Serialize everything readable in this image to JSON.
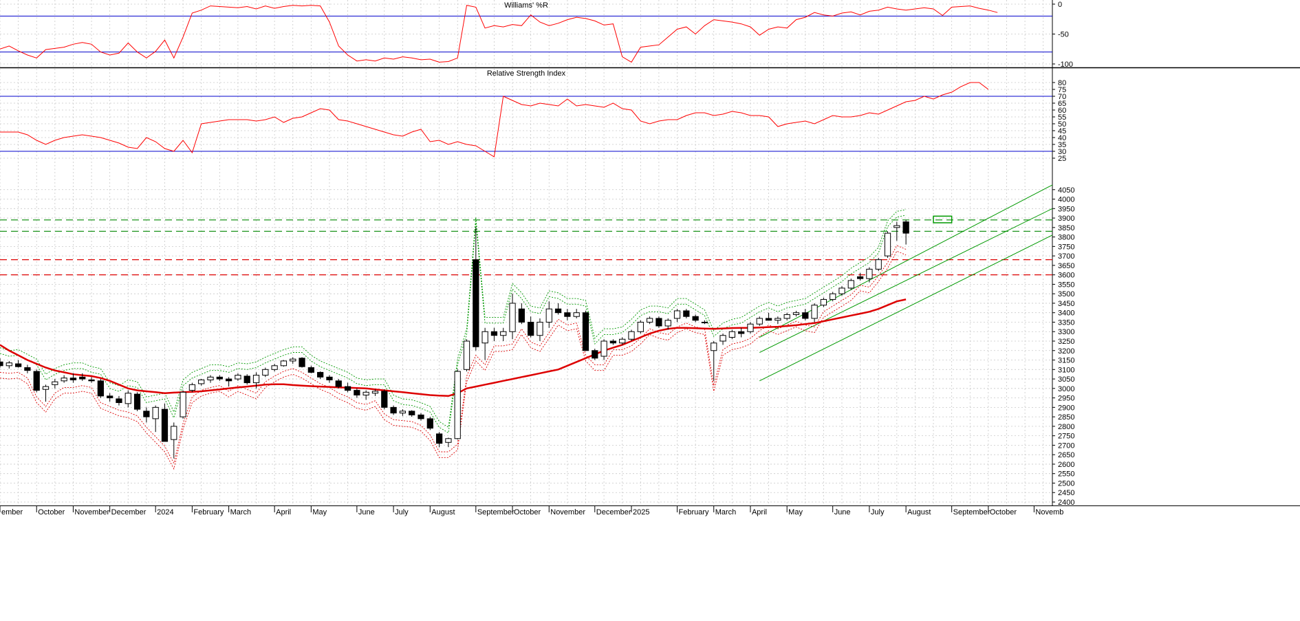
{
  "chart_data": [
    {
      "type": "line",
      "title": "Williams' %R",
      "ylim": [
        -100,
        0
      ],
      "yticks": [
        0,
        -50,
        -100
      ],
      "levels": [
        -20,
        -80
      ],
      "level_color": "#0000cc",
      "series": [
        {
          "color": "#ff0000",
          "values": [
            -75,
            -70,
            -78,
            -85,
            -90,
            -76,
            -74,
            -72,
            -67,
            -64,
            -67,
            -80,
            -85,
            -82,
            -65,
            -80,
            -90,
            -79,
            -60,
            -90,
            -55,
            -15,
            -10,
            -3,
            -4,
            -5,
            -6,
            -4,
            -8,
            -3,
            -7,
            -4,
            -2,
            -3,
            -2,
            -3,
            -30,
            -70,
            -85,
            -95,
            -93,
            -95,
            -90,
            -92,
            -88,
            -90,
            -93,
            -92,
            -97,
            -96,
            -90,
            -2,
            -5,
            -40,
            -36,
            -38,
            -34,
            -36,
            -18,
            -30,
            -36,
            -32,
            -26,
            -22,
            -24,
            -28,
            -35,
            -33,
            -88,
            -97,
            -72,
            -70,
            -68,
            -55,
            -42,
            -38,
            -50,
            -36,
            -26,
            -28,
            -30,
            -33,
            -38,
            -52,
            -42,
            -38,
            -40,
            -26,
            -22,
            -14,
            -18,
            -20,
            -15,
            -13,
            -18,
            -12,
            -10,
            -5,
            -8,
            -10,
            -8,
            -6,
            -8,
            -19,
            -5,
            -4,
            -3,
            -7,
            -10,
            -14
          ]
        }
      ]
    },
    {
      "type": "line",
      "title": "Relative Strength Index",
      "ylim": [
        20,
        85
      ],
      "yticks": [
        80,
        75,
        70,
        65,
        60,
        55,
        50,
        45,
        40,
        35,
        30,
        25
      ],
      "levels": [
        70,
        30
      ],
      "level_color": "#0000cc",
      "series": [
        {
          "color": "#ff0000",
          "values": [
            44,
            44,
            44,
            42,
            38,
            35,
            38,
            40,
            41,
            42,
            41,
            40,
            38,
            36,
            33,
            32,
            40,
            37,
            32,
            30,
            38,
            29,
            50,
            51,
            52,
            53,
            53,
            53,
            52,
            53,
            55,
            51,
            54,
            55,
            58,
            61,
            60,
            53,
            52,
            50,
            48,
            46,
            44,
            42,
            41,
            44,
            46,
            37,
            38,
            35,
            37,
            35,
            34,
            30,
            26,
            70,
            67,
            64,
            63,
            65,
            64,
            63,
            68,
            63,
            64,
            63,
            62,
            65,
            61,
            60,
            52,
            50,
            52,
            53,
            53,
            56,
            58,
            58,
            56,
            57,
            59,
            58,
            56,
            56,
            55,
            48,
            50,
            51,
            52,
            50,
            53,
            56,
            55,
            55,
            56,
            58,
            57,
            60,
            63,
            66,
            67,
            70,
            68,
            71,
            73,
            77,
            80,
            80,
            75
          ]
        }
      ]
    },
    {
      "type": "line",
      "title": "",
      "ylim": [
        2400,
        4100
      ],
      "yticks": [
        4050,
        4000,
        3950,
        3900,
        3850,
        3800,
        3750,
        3700,
        3650,
        3600,
        3550,
        3500,
        3450,
        3400,
        3350,
        3300,
        3250,
        3200,
        3150,
        3100,
        3050,
        3000,
        2950,
        2900,
        2850,
        2800,
        2750,
        2700,
        2650,
        2600,
        2550,
        2500,
        2450,
        2400
      ],
      "x_start": "2023-09-08",
      "interval_days": 7,
      "x_end": "2025-11-21",
      "month_labels": [
        {
          "label": "ember",
          "date": "2023-09-08"
        },
        {
          "label": "October",
          "date": "2023-10-06"
        },
        {
          "label": "November",
          "date": "2023-11-03"
        },
        {
          "label": "December",
          "date": "2023-12-01"
        },
        {
          "label": "2024",
          "date": "2024-01-05"
        },
        {
          "label": "February",
          "date": "2024-02-02"
        },
        {
          "label": "March",
          "date": "2024-03-01"
        },
        {
          "label": "April",
          "date": "2024-04-05"
        },
        {
          "label": "May",
          "date": "2024-05-03"
        },
        {
          "label": "June",
          "date": "2024-06-07"
        },
        {
          "label": "July",
          "date": "2024-07-05"
        },
        {
          "label": "August",
          "date": "2024-08-02"
        },
        {
          "label": "September",
          "date": "2024-09-06"
        },
        {
          "label": "October",
          "date": "2024-10-04"
        },
        {
          "label": "November",
          "date": "2024-11-01"
        },
        {
          "label": "December",
          "date": "2024-12-06"
        },
        {
          "label": "2025",
          "date": "2025-01-03"
        },
        {
          "label": "February",
          "date": "2025-02-07"
        },
        {
          "label": "March",
          "date": "2025-03-07"
        },
        {
          "label": "April",
          "date": "2025-04-04"
        },
        {
          "label": "May",
          "date": "2025-05-02"
        },
        {
          "label": "June",
          "date": "2025-06-06"
        },
        {
          "label": "July",
          "date": "2025-07-04"
        },
        {
          "label": "August",
          "date": "2025-08-01"
        },
        {
          "label": "September",
          "date": "2025-09-05"
        },
        {
          "label": "October",
          "date": "2025-10-03"
        },
        {
          "label": "Novemb",
          "date": "2025-11-07"
        }
      ],
      "candles_ohlc": [
        [
          3140,
          3160,
          3110,
          3120
        ],
        [
          3120,
          3145,
          3105,
          3135
        ],
        [
          3130,
          3150,
          3110,
          3115
        ],
        [
          3110,
          3125,
          3080,
          3095
        ],
        [
          3090,
          3100,
          2980,
          2990
        ],
        [
          2995,
          3020,
          2930,
          3010
        ],
        [
          3020,
          3050,
          3000,
          3035
        ],
        [
          3040,
          3070,
          3030,
          3055
        ],
        [
          3055,
          3080,
          3030,
          3045
        ],
        [
          3060,
          3080,
          3040,
          3050
        ],
        [
          3045,
          3060,
          3030,
          3040
        ],
        [
          3040,
          3050,
          2950,
          2960
        ],
        [
          2960,
          2975,
          2930,
          2950
        ],
        [
          2945,
          2960,
          2910,
          2925
        ],
        [
          2920,
          2990,
          2900,
          2975
        ],
        [
          2970,
          2980,
          2880,
          2890
        ],
        [
          2880,
          2900,
          2820,
          2850
        ],
        [
          2840,
          2910,
          2770,
          2900
        ],
        [
          2890,
          2920,
          2720,
          2720
        ],
        [
          2730,
          2820,
          2630,
          2800
        ],
        [
          2850,
          2990,
          2840,
          2980
        ],
        [
          2990,
          3030,
          2980,
          3020
        ],
        [
          3025,
          3050,
          3015,
          3045
        ],
        [
          3045,
          3070,
          3030,
          3060
        ],
        [
          3060,
          3070,
          3040,
          3050
        ],
        [
          3050,
          3060,
          3010,
          3040
        ],
        [
          3050,
          3080,
          3040,
          3070
        ],
        [
          3065,
          3075,
          3020,
          3030
        ],
        [
          3030,
          3085,
          3000,
          3070
        ],
        [
          3070,
          3110,
          3060,
          3100
        ],
        [
          3100,
          3130,
          3090,
          3120
        ],
        [
          3120,
          3150,
          3115,
          3145
        ],
        [
          3145,
          3165,
          3130,
          3155
        ],
        [
          3160,
          3165,
          3110,
          3115
        ],
        [
          3110,
          3120,
          3080,
          3085
        ],
        [
          3085,
          3090,
          3050,
          3060
        ],
        [
          3060,
          3070,
          3030,
          3045
        ],
        [
          3040,
          3050,
          3000,
          3010
        ],
        [
          3010,
          3030,
          2980,
          2990
        ],
        [
          2990,
          3000,
          2950,
          2965
        ],
        [
          2965,
          2990,
          2940,
          2980
        ],
        [
          2975,
          2995,
          2960,
          2985
        ],
        [
          2985,
          2995,
          2890,
          2900
        ],
        [
          2900,
          2910,
          2860,
          2870
        ],
        [
          2870,
          2890,
          2855,
          2880
        ],
        [
          2880,
          2885,
          2850,
          2860
        ],
        [
          2860,
          2870,
          2830,
          2840
        ],
        [
          2840,
          2850,
          2780,
          2790
        ],
        [
          2760,
          2770,
          2690,
          2710
        ],
        [
          2715,
          2740,
          2690,
          2735
        ],
        [
          2735,
          3100,
          2730,
          3090
        ],
        [
          3100,
          3260,
          3090,
          3250
        ],
        [
          3680,
          3850,
          3200,
          3220
        ],
        [
          3240,
          3320,
          3150,
          3300
        ],
        [
          3300,
          3320,
          3250,
          3280
        ],
        [
          3280,
          3320,
          3250,
          3300
        ],
        [
          3300,
          3500,
          3260,
          3450
        ],
        [
          3420,
          3450,
          3340,
          3350
        ],
        [
          3350,
          3380,
          3270,
          3280
        ],
        [
          3280,
          3370,
          3250,
          3350
        ],
        [
          3350,
          3460,
          3320,
          3420
        ],
        [
          3420,
          3450,
          3390,
          3400
        ],
        [
          3400,
          3420,
          3360,
          3380
        ],
        [
          3380,
          3420,
          3370,
          3400
        ],
        [
          3400,
          3410,
          3200,
          3200
        ],
        [
          3200,
          3210,
          3150,
          3160
        ],
        [
          3170,
          3260,
          3150,
          3250
        ],
        [
          3250,
          3260,
          3230,
          3240
        ],
        [
          3240,
          3270,
          3230,
          3260
        ],
        [
          3260,
          3310,
          3250,
          3300
        ],
        [
          3300,
          3360,
          3290,
          3350
        ],
        [
          3350,
          3380,
          3340,
          3370
        ],
        [
          3370,
          3380,
          3320,
          3330
        ],
        [
          3330,
          3370,
          3310,
          3360
        ],
        [
          3370,
          3420,
          3350,
          3410
        ],
        [
          3410,
          3420,
          3370,
          3380
        ],
        [
          3380,
          3390,
          3350,
          3360
        ],
        [
          3350,
          3360,
          3340,
          3350
        ],
        [
          3200,
          3250,
          3040,
          3240
        ],
        [
          3250,
          3290,
          3230,
          3280
        ],
        [
          3270,
          3310,
          3260,
          3300
        ],
        [
          3300,
          3320,
          3270,
          3290
        ],
        [
          3300,
          3350,
          3290,
          3340
        ],
        [
          3340,
          3380,
          3330,
          3370
        ],
        [
          3370,
          3400,
          3360,
          3360
        ],
        [
          3360,
          3380,
          3340,
          3370
        ],
        [
          3370,
          3400,
          3360,
          3390
        ],
        [
          3390,
          3410,
          3380,
          3400
        ],
        [
          3400,
          3420,
          3360,
          3370
        ],
        [
          3370,
          3450,
          3350,
          3440
        ],
        [
          3440,
          3480,
          3430,
          3470
        ],
        [
          3470,
          3510,
          3460,
          3500
        ],
        [
          3500,
          3540,
          3490,
          3530
        ],
        [
          3530,
          3580,
          3520,
          3570
        ],
        [
          3590,
          3610,
          3570,
          3580
        ],
        [
          3580,
          3640,
          3560,
          3630
        ],
        [
          3630,
          3690,
          3620,
          3680
        ],
        [
          3700,
          3830,
          3690,
          3820
        ],
        [
          3850,
          3880,
          3780,
          3860
        ],
        [
          3880,
          3890,
          3760,
          3820
        ]
      ],
      "candle_start_index": 0,
      "sma": [
        3230,
        3200,
        3175,
        3150,
        3130,
        3110,
        3095,
        3085,
        3075,
        3070,
        3065,
        3055,
        3040,
        3020,
        3000,
        2990,
        2985,
        2980,
        2975,
        2978,
        2980,
        2982,
        2985,
        2990,
        2995,
        3000,
        3005,
        3010,
        3015,
        3020,
        3022,
        3022,
        3018,
        3015,
        3012,
        3010,
        3008,
        3006,
        3004,
        3002,
        3000,
        2995,
        2990,
        2985,
        2980,
        2975,
        2970,
        2965,
        2962,
        2960,
        2975,
        3000,
        3010,
        3020,
        3030,
        3040,
        3050,
        3060,
        3070,
        3080,
        3090,
        3100,
        3120,
        3140,
        3160,
        3180,
        3200,
        3215,
        3230,
        3250,
        3270,
        3290,
        3305,
        3315,
        3320,
        3320,
        3318,
        3316,
        3315,
        3317,
        3319,
        3320,
        3320,
        3322,
        3324,
        3326,
        3330,
        3334,
        3340,
        3345,
        3355,
        3365,
        3375,
        3385,
        3395,
        3405,
        3420,
        3440,
        3460,
        3470
      ],
      "sma_start_index": 0,
      "sma_color": "#dd0000",
      "h_lines": [
        {
          "value": 3890,
          "color": "#008800"
        },
        {
          "value": 3830,
          "color": "#008800"
        },
        {
          "value": 3680,
          "color": "#dd0000"
        },
        {
          "value": 3600,
          "color": "#dd0000"
        }
      ],
      "channel": [
        {
          "from": [
            "2025-04-11",
            3270
          ],
          "to": [
            "2025-11-21",
            4075
          ],
          "color": "#009900"
        },
        {
          "from": [
            "2025-04-11",
            3190
          ],
          "to": [
            "2025-11-21",
            3950
          ],
          "color": "#009900"
        },
        {
          "from": [
            "2025-04-11",
            3040
          ],
          "to": [
            "2025-11-21",
            3810
          ],
          "color": "#009900"
        }
      ],
      "highlight_box": {
        "x0": "2025-08-22",
        "x1": "2025-09-05",
        "y0": 3875,
        "y1": 3910,
        "color": "#009900"
      }
    }
  ]
}
